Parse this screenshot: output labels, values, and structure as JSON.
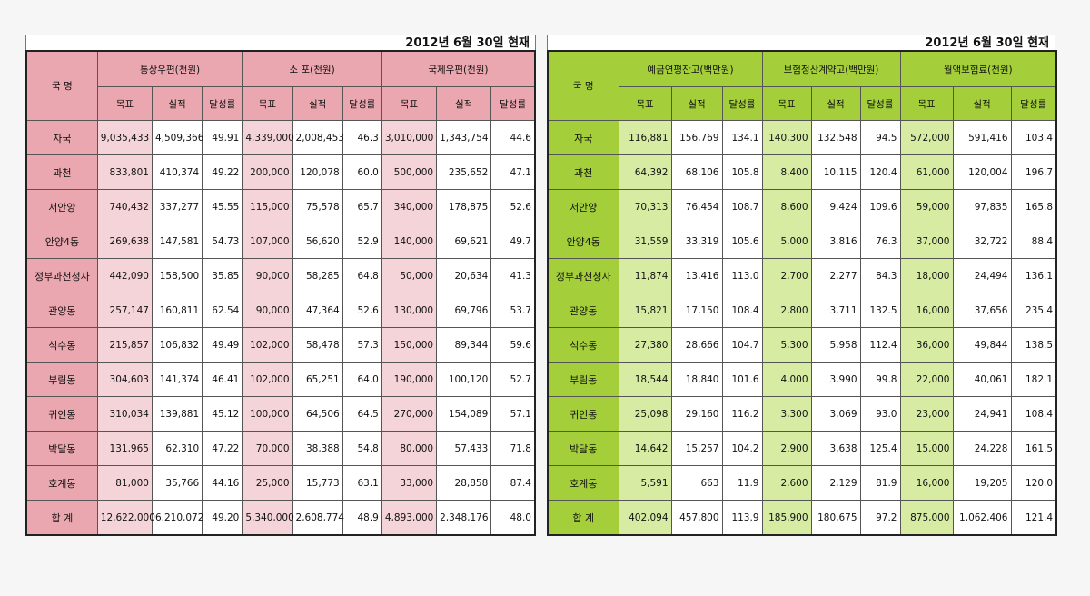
{
  "left": {
    "date": "2012년 6월 30일 현재",
    "corner": "국 명",
    "groups": [
      "통상우편(천원)",
      "소 포(천원)",
      "국제우편(천원)"
    ],
    "sub": [
      "목표",
      "실적",
      "달성률"
    ],
    "rows": [
      {
        "name": "자국",
        "v": [
          "9,035,433",
          "4,509,366",
          "49.91",
          "4,339,000",
          "2,008,453",
          "46.3",
          "3,010,000",
          "1,343,754",
          "44.6"
        ]
      },
      {
        "name": "과천",
        "v": [
          "833,801",
          "410,374",
          "49.22",
          "200,000",
          "120,078",
          "60.0",
          "500,000",
          "235,652",
          "47.1"
        ]
      },
      {
        "name": "서안양",
        "v": [
          "740,432",
          "337,277",
          "45.55",
          "115,000",
          "75,578",
          "65.7",
          "340,000",
          "178,875",
          "52.6"
        ]
      },
      {
        "name": "안양4동",
        "v": [
          "269,638",
          "147,581",
          "54.73",
          "107,000",
          "56,620",
          "52.9",
          "140,000",
          "69,621",
          "49.7"
        ]
      },
      {
        "name": "정부과천청사",
        "v": [
          "442,090",
          "158,500",
          "35.85",
          "90,000",
          "58,285",
          "64.8",
          "50,000",
          "20,634",
          "41.3"
        ]
      },
      {
        "name": "관양동",
        "v": [
          "257,147",
          "160,811",
          "62.54",
          "90,000",
          "47,364",
          "52.6",
          "130,000",
          "69,796",
          "53.7"
        ]
      },
      {
        "name": "석수동",
        "v": [
          "215,857",
          "106,832",
          "49.49",
          "102,000",
          "58,478",
          "57.3",
          "150,000",
          "89,344",
          "59.6"
        ]
      },
      {
        "name": "부림동",
        "v": [
          "304,603",
          "141,374",
          "46.41",
          "102,000",
          "65,251",
          "64.0",
          "190,000",
          "100,120",
          "52.7"
        ]
      },
      {
        "name": "귀인동",
        "v": [
          "310,034",
          "139,881",
          "45.12",
          "100,000",
          "64,506",
          "64.5",
          "270,000",
          "154,089",
          "57.1"
        ]
      },
      {
        "name": "박달동",
        "v": [
          "131,965",
          "62,310",
          "47.22",
          "70,000",
          "38,388",
          "54.8",
          "80,000",
          "57,433",
          "71.8"
        ]
      },
      {
        "name": "호계동",
        "v": [
          "81,000",
          "35,766",
          "44.16",
          "25,000",
          "15,773",
          "63.1",
          "33,000",
          "28,858",
          "87.4"
        ]
      },
      {
        "name": "합 계",
        "v": [
          "12,622,000",
          "6,210,072",
          "49.20",
          "5,340,000",
          "2,608,774",
          "48.9",
          "4,893,000",
          "2,348,176",
          "48.0"
        ]
      }
    ]
  },
  "right": {
    "date": "2012년 6월 30일 현재",
    "corner": "국 명",
    "groups": [
      "예금연평잔고(백만원)",
      "보험정산계약고(백만원)",
      "월액보험료(천원)"
    ],
    "sub": [
      "목표",
      "실적",
      "달성률"
    ],
    "rows": [
      {
        "name": "자국",
        "v": [
          "116,881",
          "156,769",
          "134.1",
          "140,300",
          "132,548",
          "94.5",
          "572,000",
          "591,416",
          "103.4"
        ]
      },
      {
        "name": "과천",
        "v": [
          "64,392",
          "68,106",
          "105.8",
          "8,400",
          "10,115",
          "120.4",
          "61,000",
          "120,004",
          "196.7"
        ]
      },
      {
        "name": "서안양",
        "v": [
          "70,313",
          "76,454",
          "108.7",
          "8,600",
          "9,424",
          "109.6",
          "59,000",
          "97,835",
          "165.8"
        ]
      },
      {
        "name": "안양4동",
        "v": [
          "31,559",
          "33,319",
          "105.6",
          "5,000",
          "3,816",
          "76.3",
          "37,000",
          "32,722",
          "88.4"
        ]
      },
      {
        "name": "정부과천청사",
        "v": [
          "11,874",
          "13,416",
          "113.0",
          "2,700",
          "2,277",
          "84.3",
          "18,000",
          "24,494",
          "136.1"
        ]
      },
      {
        "name": "관양동",
        "v": [
          "15,821",
          "17,150",
          "108.4",
          "2,800",
          "3,711",
          "132.5",
          "16,000",
          "37,656",
          "235.4"
        ]
      },
      {
        "name": "석수동",
        "v": [
          "27,380",
          "28,666",
          "104.7",
          "5,300",
          "5,958",
          "112.4",
          "36,000",
          "49,844",
          "138.5"
        ]
      },
      {
        "name": "부림동",
        "v": [
          "18,544",
          "18,840",
          "101.6",
          "4,000",
          "3,990",
          "99.8",
          "22,000",
          "40,061",
          "182.1"
        ]
      },
      {
        "name": "귀인동",
        "v": [
          "25,098",
          "29,160",
          "116.2",
          "3,300",
          "3,069",
          "93.0",
          "23,000",
          "24,941",
          "108.4"
        ]
      },
      {
        "name": "박달동",
        "v": [
          "14,642",
          "15,257",
          "104.2",
          "2,900",
          "3,638",
          "125.4",
          "15,000",
          "24,228",
          "161.5"
        ]
      },
      {
        "name": "호계동",
        "v": [
          "5,591",
          "663",
          "11.9",
          "2,600",
          "2,129",
          "81.9",
          "16,000",
          "19,205",
          "120.0"
        ]
      },
      {
        "name": "합 계",
        "v": [
          "402,094",
          "457,800",
          "113.9",
          "185,900",
          "180,675",
          "97.2",
          "875,000",
          "1,062,406",
          "121.4"
        ]
      }
    ]
  }
}
